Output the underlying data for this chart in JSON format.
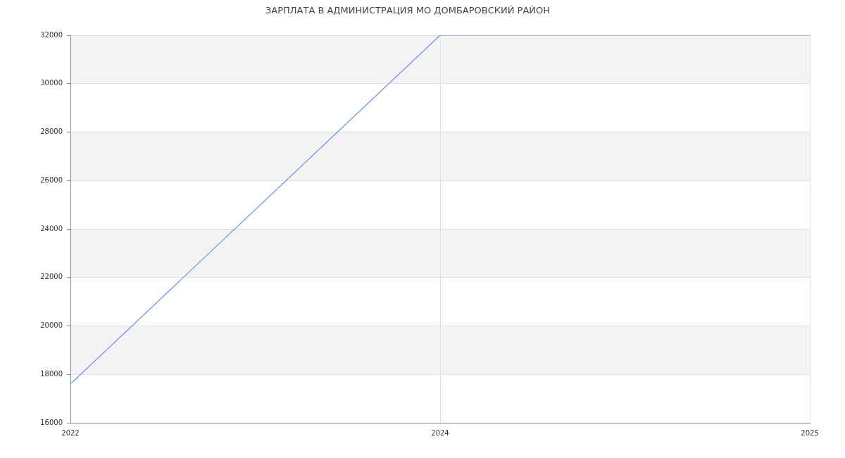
{
  "chart_data": {
    "type": "line",
    "title": "ЗАРПЛАТА В АДМИНИСТРАЦИЯ МО ДОМБАРОВСКИЙ РАЙОН",
    "categories": [
      "2022",
      "2024",
      "2025"
    ],
    "series": [
      {
        "color": "#6495ed",
        "values": [
          17600,
          32000,
          32000
        ]
      }
    ],
    "ylim": [
      16000,
      32000
    ],
    "yticks": [
      16000,
      18000,
      20000,
      22000,
      24000,
      26000,
      28000,
      30000,
      32000
    ],
    "grid": true,
    "marker": "none",
    "line_style": "solid"
  }
}
